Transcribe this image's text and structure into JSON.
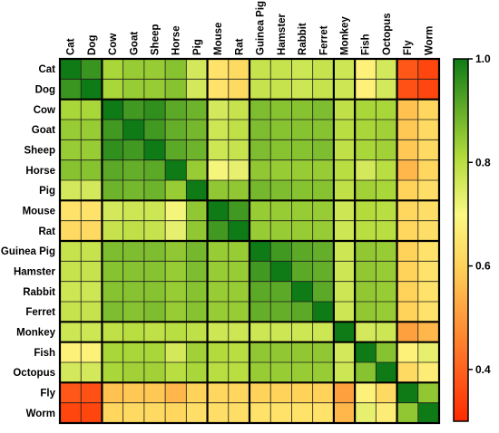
{
  "chart_data": {
    "type": "heatmap",
    "title": "",
    "xlabel": "",
    "ylabel": "",
    "row_labels": [
      "Cat",
      "Dog",
      "Cow",
      "Goat",
      "Sheep",
      "Horse",
      "Pig",
      "Mouse",
      "Rat",
      "Guinea Pig",
      "Hamster",
      "Rabbit",
      "Ferret",
      "Monkey",
      "Fish",
      "Octopus",
      "Fly",
      "Worm"
    ],
    "col_labels": [
      "Cat",
      "Dog",
      "Cow",
      "Goat",
      "Sheep",
      "Horse",
      "Pig",
      "Mouse",
      "Rat",
      "Guinea Pig",
      "Hamster",
      "Rabbit",
      "Ferret",
      "Monkey",
      "Fish",
      "Octopus",
      "Fly",
      "Worm"
    ],
    "group_breaks_after_index": [
      1,
      6,
      8,
      12,
      13,
      15
    ],
    "colorbar": {
      "min": 0.3,
      "max": 1.0,
      "ticks": [
        "0.4",
        "0.6",
        "0.8",
        "1.0"
      ],
      "tick_values": [
        0.4,
        0.6,
        0.8,
        1.0
      ],
      "colors": [
        "#ff2a00",
        "#ffd35a",
        "#fcf882",
        "#b1db3a",
        "#0f7b16"
      ],
      "color_stops": [
        0.0,
        0.43,
        0.57,
        0.73,
        1.0
      ]
    },
    "values": [
      [
        1.0,
        0.95,
        0.82,
        0.84,
        0.84,
        0.86,
        0.76,
        0.64,
        0.62,
        0.78,
        0.78,
        0.77,
        0.78,
        0.77,
        0.68,
        0.76,
        0.38,
        0.35
      ],
      [
        0.95,
        1.0,
        0.82,
        0.84,
        0.84,
        0.86,
        0.76,
        0.64,
        0.62,
        0.78,
        0.78,
        0.77,
        0.78,
        0.77,
        0.68,
        0.76,
        0.37,
        0.35
      ],
      [
        0.82,
        0.82,
        1.0,
        0.94,
        0.96,
        0.91,
        0.89,
        0.76,
        0.78,
        0.87,
        0.86,
        0.86,
        0.87,
        0.79,
        0.82,
        0.82,
        0.57,
        0.61
      ],
      [
        0.84,
        0.84,
        0.94,
        1.0,
        0.94,
        0.9,
        0.88,
        0.77,
        0.79,
        0.87,
        0.86,
        0.86,
        0.86,
        0.8,
        0.82,
        0.83,
        0.58,
        0.62
      ],
      [
        0.84,
        0.84,
        0.96,
        0.94,
        1.0,
        0.91,
        0.89,
        0.77,
        0.78,
        0.87,
        0.86,
        0.86,
        0.87,
        0.79,
        0.82,
        0.83,
        0.58,
        0.62
      ],
      [
        0.86,
        0.86,
        0.91,
        0.9,
        0.91,
        1.0,
        0.84,
        0.71,
        0.73,
        0.85,
        0.84,
        0.84,
        0.84,
        0.8,
        0.76,
        0.8,
        0.55,
        0.61
      ],
      [
        0.76,
        0.76,
        0.89,
        0.88,
        0.89,
        0.84,
        1.0,
        0.85,
        0.85,
        0.88,
        0.87,
        0.86,
        0.86,
        0.79,
        0.83,
        0.82,
        0.6,
        0.63
      ],
      [
        0.64,
        0.64,
        0.76,
        0.77,
        0.77,
        0.71,
        0.85,
        1.0,
        0.94,
        0.84,
        0.84,
        0.84,
        0.84,
        0.77,
        0.81,
        0.8,
        0.61,
        0.63
      ],
      [
        0.62,
        0.62,
        0.78,
        0.79,
        0.78,
        0.73,
        0.85,
        0.94,
        1.0,
        0.84,
        0.84,
        0.84,
        0.84,
        0.77,
        0.8,
        0.8,
        0.61,
        0.63
      ],
      [
        0.78,
        0.78,
        0.87,
        0.87,
        0.87,
        0.85,
        0.88,
        0.84,
        0.84,
        1.0,
        0.94,
        0.91,
        0.9,
        0.77,
        0.85,
        0.84,
        0.6,
        0.64
      ],
      [
        0.78,
        0.78,
        0.86,
        0.86,
        0.86,
        0.84,
        0.87,
        0.84,
        0.84,
        0.94,
        1.0,
        0.91,
        0.9,
        0.77,
        0.85,
        0.84,
        0.6,
        0.64
      ],
      [
        0.77,
        0.77,
        0.86,
        0.86,
        0.86,
        0.84,
        0.86,
        0.84,
        0.84,
        0.91,
        0.91,
        1.0,
        0.91,
        0.77,
        0.85,
        0.84,
        0.6,
        0.64
      ],
      [
        0.78,
        0.78,
        0.87,
        0.86,
        0.87,
        0.84,
        0.86,
        0.84,
        0.84,
        0.9,
        0.9,
        0.91,
        1.0,
        0.77,
        0.85,
        0.84,
        0.6,
        0.64
      ],
      [
        0.77,
        0.77,
        0.79,
        0.8,
        0.79,
        0.8,
        0.79,
        0.77,
        0.77,
        0.77,
        0.77,
        0.77,
        0.77,
        1.0,
        0.76,
        0.77,
        0.51,
        0.55
      ],
      [
        0.68,
        0.68,
        0.82,
        0.82,
        0.82,
        0.76,
        0.83,
        0.81,
        0.8,
        0.85,
        0.85,
        0.85,
        0.85,
        0.76,
        1.0,
        0.86,
        0.68,
        0.73
      ],
      [
        0.76,
        0.76,
        0.82,
        0.83,
        0.83,
        0.8,
        0.82,
        0.8,
        0.8,
        0.84,
        0.84,
        0.84,
        0.84,
        0.77,
        0.86,
        1.0,
        0.62,
        0.67
      ],
      [
        0.38,
        0.37,
        0.57,
        0.58,
        0.58,
        0.55,
        0.6,
        0.61,
        0.61,
        0.6,
        0.6,
        0.6,
        0.6,
        0.51,
        0.68,
        0.62,
        1.0,
        0.85
      ],
      [
        0.35,
        0.35,
        0.61,
        0.62,
        0.62,
        0.61,
        0.63,
        0.63,
        0.63,
        0.64,
        0.64,
        0.64,
        0.64,
        0.55,
        0.73,
        0.67,
        0.85,
        1.0
      ]
    ]
  }
}
